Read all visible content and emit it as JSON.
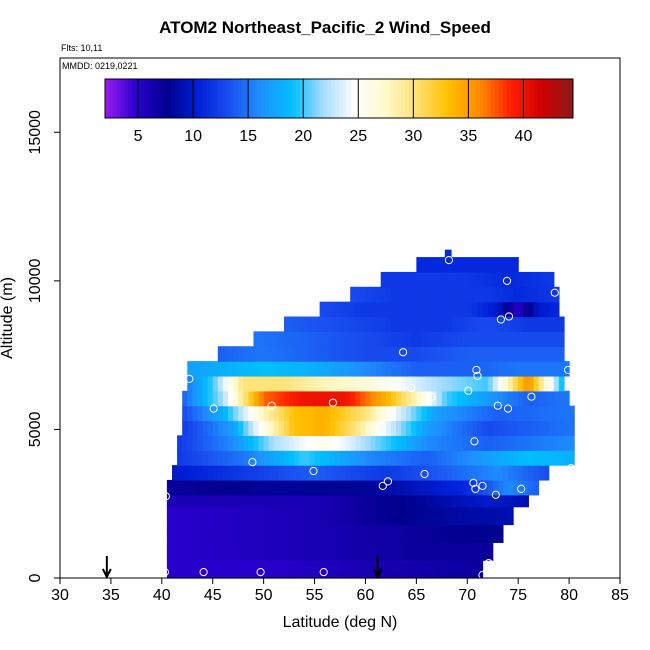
{
  "title": "ATOM2 Northeast_Pacific_2 Wind_Speed",
  "flights_line": "Flts: 10,11",
  "dates_line": "MMDD: 0219,0221",
  "chart_data": {
    "type": "heatmap",
    "title": "ATOM2 Northeast_Pacific_2 Wind_Speed",
    "xlabel": "Latitude (deg N)",
    "ylabel": "Altitude (m)",
    "xlim": [
      30,
      85
    ],
    "ylim": [
      0,
      17500
    ],
    "x_ticks": [
      30,
      35,
      40,
      45,
      50,
      55,
      60,
      65,
      70,
      75,
      80,
      85
    ],
    "y_ticks": [
      0,
      5000,
      10000,
      15000
    ],
    "colorbar": {
      "ticks": [
        5,
        10,
        15,
        20,
        25,
        30,
        35,
        40
      ],
      "range": [
        2,
        44.5
      ],
      "colors": [
        "#9a1cf0",
        "#2a00d0",
        "#00008c",
        "#0020d8",
        "#1a50f0",
        "#1e90ff",
        "#00bfff",
        "#a8dcff",
        "#ffffff",
        "#fffacd",
        "#ffe070",
        "#ffc000",
        "#ff8c00",
        "#ff2000",
        "#d00000",
        "#8b1a1a"
      ]
    },
    "altitude_bins": [
      {
        "alt": 0,
        "lat_min": 40.5,
        "lat_max": 71.5,
        "ws": [
          [
            40.5,
            5
          ],
          [
            50,
            5
          ],
          [
            60,
            6
          ],
          [
            71.5,
            7
          ]
        ]
      },
      {
        "alt": 600,
        "lat_min": 40.5,
        "lat_max": 72.5,
        "ws": [
          [
            40.5,
            5
          ],
          [
            55,
            6
          ],
          [
            65,
            7
          ],
          [
            72.5,
            7
          ]
        ]
      },
      {
        "alt": 1200,
        "lat_min": 40.5,
        "lat_max": 73.5,
        "ws": [
          [
            40.5,
            5
          ],
          [
            55,
            6
          ],
          [
            65,
            7
          ],
          [
            73.5,
            8
          ]
        ]
      },
      {
        "alt": 1800,
        "lat_min": 40.5,
        "lat_max": 74.5,
        "ws": [
          [
            40.5,
            5
          ],
          [
            55,
            6
          ],
          [
            65,
            8
          ],
          [
            74.5,
            9
          ]
        ]
      },
      {
        "alt": 2400,
        "lat_min": 40.5,
        "lat_max": 76.0,
        "ws": [
          [
            40.5,
            6
          ],
          [
            55,
            6
          ],
          [
            65,
            8
          ],
          [
            72,
            10
          ],
          [
            76,
            9
          ]
        ]
      },
      {
        "alt": 2800,
        "lat_min": 40.5,
        "lat_max": 77.0,
        "ws": [
          [
            40.5,
            7
          ],
          [
            50,
            8
          ],
          [
            60,
            8
          ],
          [
            70,
            11
          ],
          [
            74,
            16
          ],
          [
            77,
            14
          ]
        ]
      },
      {
        "alt": 3300,
        "lat_min": 41.0,
        "lat_max": 78.0,
        "ws": [
          [
            41,
            10
          ],
          [
            48,
            12
          ],
          [
            55,
            14
          ],
          [
            62,
            12
          ],
          [
            68,
            14
          ],
          [
            73,
            16
          ],
          [
            78,
            13
          ]
        ]
      },
      {
        "alt": 3800,
        "lat_min": 41.5,
        "lat_max": 80.5,
        "ws": [
          [
            41.5,
            12
          ],
          [
            48,
            15
          ],
          [
            54,
            20
          ],
          [
            60,
            16
          ],
          [
            66,
            14
          ],
          [
            72,
            17
          ],
          [
            76,
            19
          ],
          [
            80.5,
            18
          ]
        ]
      },
      {
        "alt": 4300,
        "lat_min": 41.5,
        "lat_max": 80.5,
        "ws": [
          [
            41.5,
            12
          ],
          [
            47,
            16
          ],
          [
            51,
            22
          ],
          [
            56,
            26
          ],
          [
            61,
            21
          ],
          [
            66,
            16
          ],
          [
            72,
            14
          ],
          [
            80.5,
            16
          ]
        ]
      },
      {
        "alt": 4800,
        "lat_min": 42.0,
        "lat_max": 80.5,
        "ws": [
          [
            42,
            12
          ],
          [
            47,
            17
          ],
          [
            50,
            26
          ],
          [
            53,
            33
          ],
          [
            56,
            34
          ],
          [
            59,
            30
          ],
          [
            62,
            24
          ],
          [
            66,
            17
          ],
          [
            72,
            13
          ],
          [
            80.5,
            15
          ]
        ]
      },
      {
        "alt": 5300,
        "lat_min": 42.0,
        "lat_max": 80.5,
        "ws": [
          [
            42,
            13
          ],
          [
            46,
            18
          ],
          [
            50,
            28
          ],
          [
            53,
            33
          ],
          [
            56,
            34
          ],
          [
            60,
            30
          ],
          [
            63,
            24
          ],
          [
            67,
            17
          ],
          [
            73,
            14
          ],
          [
            80.5,
            15
          ]
        ]
      },
      {
        "alt": 5800,
        "lat_min": 42.0,
        "lat_max": 80.0,
        "ws": [
          [
            42,
            14
          ],
          [
            46,
            22
          ],
          [
            50,
            37
          ],
          [
            54,
            40
          ],
          [
            58,
            40
          ],
          [
            62,
            34
          ],
          [
            65,
            28
          ],
          [
            68,
            20
          ],
          [
            73,
            16
          ],
          [
            76,
            14
          ],
          [
            80,
            15
          ]
        ]
      },
      {
        "alt": 6300,
        "lat_min": 42.5,
        "lat_max": 79.5,
        "ws": [
          [
            42.5,
            15
          ],
          [
            45,
            20
          ],
          [
            48,
            30
          ],
          [
            52,
            30
          ],
          [
            56,
            28
          ],
          [
            60,
            27
          ],
          [
            64,
            24
          ],
          [
            67,
            22
          ],
          [
            72,
            20
          ],
          [
            76,
            36
          ],
          [
            79.5,
            18
          ]
        ]
      },
      {
        "alt": 6800,
        "lat_min": 42.5,
        "lat_max": 80.0,
        "ws": [
          [
            42.5,
            17
          ],
          [
            46,
            18
          ],
          [
            50,
            19
          ],
          [
            55,
            18
          ],
          [
            60,
            16
          ],
          [
            65,
            14
          ],
          [
            70,
            14
          ],
          [
            75,
            15
          ],
          [
            80,
            15
          ]
        ]
      },
      {
        "alt": 7300,
        "lat_min": 45.5,
        "lat_max": 79.5,
        "ws": [
          [
            45.5,
            14
          ],
          [
            50,
            15
          ],
          [
            55,
            14
          ],
          [
            60,
            13
          ],
          [
            65,
            13
          ],
          [
            70,
            14
          ],
          [
            75,
            14
          ],
          [
            79.5,
            14
          ]
        ]
      },
      {
        "alt": 7800,
        "lat_min": 49.0,
        "lat_max": 79.5,
        "ws": [
          [
            49,
            15
          ],
          [
            55,
            14
          ],
          [
            60,
            13
          ],
          [
            65,
            12
          ],
          [
            70,
            13
          ],
          [
            75,
            13
          ],
          [
            79.5,
            13
          ]
        ]
      },
      {
        "alt": 8300,
        "lat_min": 52.0,
        "lat_max": 79.5,
        "ws": [
          [
            52,
            14
          ],
          [
            58,
            13
          ],
          [
            63,
            12
          ],
          [
            68,
            12
          ],
          [
            72,
            13
          ],
          [
            76,
            12
          ],
          [
            79.5,
            12
          ]
        ]
      },
      {
        "alt": 8800,
        "lat_min": 55.5,
        "lat_max": 79.0,
        "ws": [
          [
            55.5,
            13
          ],
          [
            60,
            12
          ],
          [
            65,
            12
          ],
          [
            70,
            12
          ],
          [
            73,
            10
          ],
          [
            75,
            5
          ],
          [
            77,
            10
          ],
          [
            79,
            11
          ]
        ]
      },
      {
        "alt": 9300,
        "lat_min": 58.5,
        "lat_max": 79.0,
        "ws": [
          [
            58.5,
            13
          ],
          [
            63,
            12
          ],
          [
            68,
            12
          ],
          [
            72,
            12
          ],
          [
            75,
            11
          ],
          [
            79,
            12
          ]
        ]
      },
      {
        "alt": 9800,
        "lat_min": 61.5,
        "lat_max": 78.5,
        "ws": [
          [
            61.5,
            12
          ],
          [
            66,
            12
          ],
          [
            70,
            12
          ],
          [
            74,
            11
          ],
          [
            78.5,
            12
          ]
        ]
      },
      {
        "alt": 10300,
        "lat_min": 65.0,
        "lat_max": 75.0,
        "ws": [
          [
            65,
            11
          ],
          [
            70,
            11
          ],
          [
            75,
            11
          ]
        ]
      },
      {
        "alt": 10800,
        "lat_min": 67.8,
        "lat_max": 68.4,
        "ws": [
          [
            67.8,
            11
          ],
          [
            68.4,
            11
          ]
        ]
      }
    ],
    "observations": [
      [
        40.3,
        200
      ],
      [
        44.1,
        200
      ],
      [
        49.7,
        200
      ],
      [
        55.9,
        200
      ],
      [
        71.5,
        100
      ],
      [
        72.1,
        500
      ],
      [
        40.4,
        2750
      ],
      [
        42.7,
        6700
      ],
      [
        45.1,
        5700
      ],
      [
        48.9,
        3900
      ],
      [
        50.8,
        5800
      ],
      [
        54.9,
        3600
      ],
      [
        56.8,
        5900
      ],
      [
        61.7,
        3100
      ],
      [
        62.2,
        3250
      ],
      [
        63.7,
        7600
      ],
      [
        64.5,
        6400
      ],
      [
        65.8,
        3500
      ],
      [
        66.5,
        6100
      ],
      [
        70.1,
        6300
      ],
      [
        70.7,
        4600
      ],
      [
        70.6,
        3200
      ],
      [
        70.8,
        3000
      ],
      [
        71.0,
        6800
      ],
      [
        70.9,
        7000
      ],
      [
        71.5,
        3100
      ],
      [
        72.8,
        2800
      ],
      [
        73.0,
        5800
      ],
      [
        73.3,
        8700
      ],
      [
        74.0,
        5700
      ],
      [
        74.1,
        8800
      ],
      [
        75.3,
        3000
      ],
      [
        76.3,
        6100
      ],
      [
        78.6,
        9600
      ],
      [
        79.9,
        7000
      ],
      [
        80.2,
        3700
      ],
      [
        68.2,
        10700
      ],
      [
        73.9,
        10000
      ]
    ],
    "markers_x": [
      34.6,
      61.2
    ]
  }
}
